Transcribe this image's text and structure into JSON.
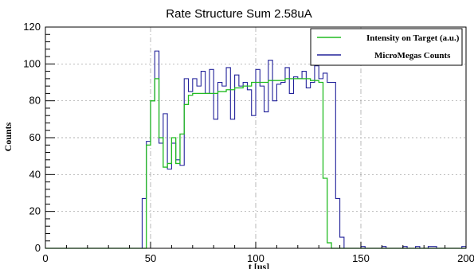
{
  "chart_data": {
    "type": "line",
    "title": "Rate Structure Sum 2.58uA",
    "xlabel": "t [us]",
    "ylabel": "Counts",
    "xlim": [
      0,
      200
    ],
    "ylim": [
      0,
      120
    ],
    "grid": true,
    "legend_position": "top-right",
    "x_ticks": [
      "0",
      "50",
      "100",
      "150",
      "200"
    ],
    "y_ticks": [
      "0",
      "20",
      "40",
      "60",
      "80",
      "100",
      "120"
    ],
    "bin_width": 2,
    "series": [
      {
        "name": "Intensity on Target (a.u.)",
        "color": "#22bb22",
        "x": [
          46,
          48,
          50,
          52,
          54,
          56,
          58,
          60,
          62,
          64,
          66,
          68,
          70,
          74,
          78,
          82,
          86,
          90,
          94,
          98,
          102,
          106,
          110,
          114,
          118,
          122,
          126,
          130,
          132,
          134,
          136,
          138
        ],
        "values": [
          0,
          56,
          80,
          92,
          60,
          44,
          46,
          60,
          46,
          62,
          78,
          83,
          84,
          84,
          84,
          85,
          86,
          87,
          88,
          90,
          90,
          91,
          91,
          92,
          92,
          92,
          91,
          90,
          38,
          3,
          0,
          0
        ]
      },
      {
        "name": "MicroMegas Counts",
        "color": "#22229a",
        "x": [
          44,
          46,
          48,
          50,
          52,
          54,
          56,
          58,
          60,
          62,
          64,
          66,
          68,
          70,
          72,
          74,
          76,
          78,
          80,
          82,
          84,
          86,
          88,
          90,
          92,
          94,
          96,
          98,
          100,
          102,
          104,
          106,
          108,
          110,
          112,
          114,
          116,
          118,
          120,
          122,
          124,
          126,
          128,
          130,
          132,
          134,
          136,
          138,
          140,
          142,
          144,
          146,
          148,
          150,
          152,
          154,
          156,
          158,
          160,
          162,
          164,
          166,
          168,
          170,
          172,
          174,
          176,
          178,
          180,
          182,
          184,
          186,
          188,
          190,
          192,
          194,
          196,
          198
        ],
        "values": [
          0,
          27,
          58,
          80,
          107,
          57,
          73,
          43,
          57,
          48,
          45,
          92,
          85,
          92,
          88,
          96,
          84,
          97,
          70,
          90,
          88,
          98,
          70,
          94,
          88,
          90,
          86,
          72,
          97,
          88,
          74,
          102,
          80,
          89,
          90,
          98,
          84,
          93,
          92,
          96,
          87,
          90,
          99,
          92,
          95,
          90,
          90,
          27,
          6,
          0,
          0,
          0,
          0,
          1,
          0,
          0,
          0,
          0,
          1,
          0,
          0,
          0,
          0,
          1,
          0,
          0,
          1,
          0,
          0,
          1,
          1,
          0,
          0,
          0,
          0,
          0,
          0,
          1
        ]
      }
    ]
  }
}
